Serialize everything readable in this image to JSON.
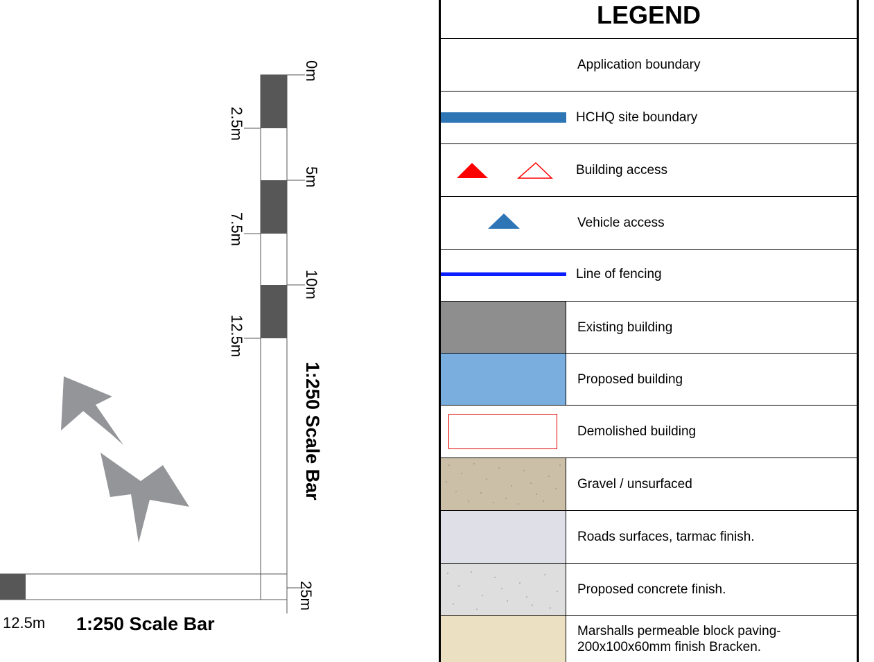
{
  "legend": {
    "title": "LEGEND",
    "items": [
      {
        "label": "Application boundary",
        "symbol": "none"
      },
      {
        "label": "HCHQ site boundary",
        "symbol": "thick-line",
        "color": "#2e75b6"
      },
      {
        "label": "Building access",
        "symbol": "triangles",
        "color": "#ff0000"
      },
      {
        "label": "Vehicle access",
        "symbol": "triangle",
        "color": "#2e75b6"
      },
      {
        "label": "Line of fencing",
        "symbol": "line",
        "color": "#0a1eff"
      },
      {
        "label": "Existing building",
        "symbol": "swatch",
        "color": "#8e8e8e"
      },
      {
        "label": "Proposed building",
        "symbol": "swatch",
        "color": "#7aaedf"
      },
      {
        "label": "Demolished building",
        "symbol": "outline-rect",
        "color": "#e00000"
      },
      {
        "label": "Gravel / unsurfaced",
        "symbol": "swatch",
        "color": "#cbbfa7"
      },
      {
        "label": "Roads surfaces, tarmac finish.",
        "symbol": "swatch",
        "color": "#dfe0e7"
      },
      {
        "label": "Proposed concrete finish.",
        "symbol": "swatch",
        "color": "#dedede"
      },
      {
        "label": "Marshalls permeable block paving-",
        "label2": "200x100x60mm finish Bracken.",
        "symbol": "swatch",
        "color": "#ece0c2"
      }
    ]
  },
  "scale_bar_vertical": {
    "title": "1:250 Scale Bar",
    "ticks_right": [
      "0m",
      "5m",
      "10m",
      "25m"
    ],
    "ticks_left": [
      "2.5m",
      "7.5m",
      "12.5m"
    ]
  },
  "scale_bar_horizontal": {
    "title": "1:250 Scale Bar",
    "tick": "12.5m"
  },
  "north_arrow": {
    "icon": "north-arrow-icon",
    "color": "#939598"
  }
}
